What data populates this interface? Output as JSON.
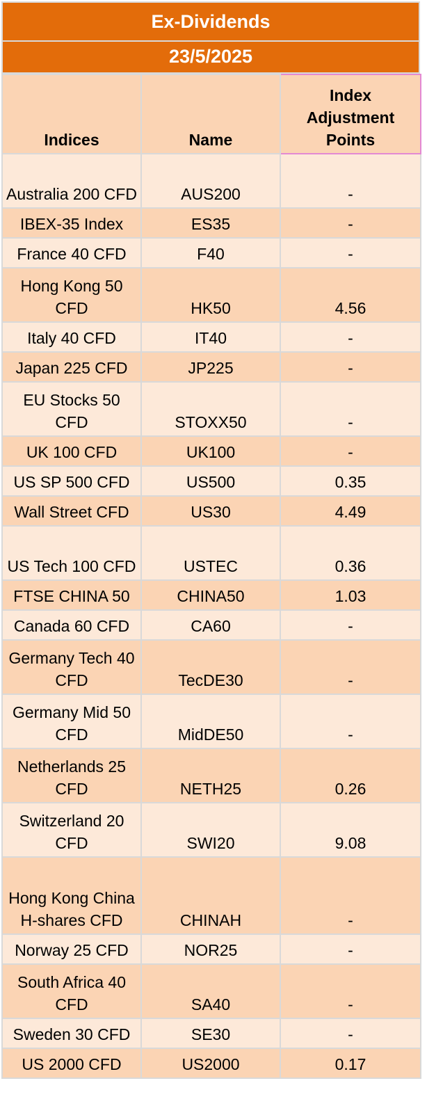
{
  "title": "Ex-Dividends",
  "date": "23/5/2025",
  "headers": {
    "indices": "Indices",
    "name": "Name",
    "points": "Index Adjustment Points"
  },
  "rows": [
    {
      "index": "Australia 200 CFD",
      "name": "AUS200",
      "points": "-"
    },
    {
      "index": "IBEX-35 Index",
      "name": "ES35",
      "points": "-"
    },
    {
      "index": "France 40 CFD",
      "name": "F40",
      "points": "-"
    },
    {
      "index": "Hong Kong 50 CFD",
      "name": "HK50",
      "points": "4.56"
    },
    {
      "index": "Italy 40 CFD",
      "name": "IT40",
      "points": "-"
    },
    {
      "index": "Japan 225 CFD",
      "name": "JP225",
      "points": "-"
    },
    {
      "index": "EU Stocks 50 CFD",
      "name": "STOXX50",
      "points": "-"
    },
    {
      "index": "UK 100 CFD",
      "name": "UK100",
      "points": "-"
    },
    {
      "index": "US SP 500 CFD",
      "name": "US500",
      "points": "0.35"
    },
    {
      "index": "Wall Street CFD",
      "name": "US30",
      "points": "4.49"
    },
    {
      "index": "US Tech 100 CFD",
      "name": "USTEC",
      "points": "0.36"
    },
    {
      "index": "FTSE CHINA 50",
      "name": "CHINA50",
      "points": "1.03"
    },
    {
      "index": "Canada 60 CFD",
      "name": "CA60",
      "points": "-"
    },
    {
      "index": "Germany Tech 40 CFD",
      "name": "TecDE30",
      "points": "-"
    },
    {
      "index": "Germany Mid 50 CFD",
      "name": "MidDE50",
      "points": "-"
    },
    {
      "index": "Netherlands 25 CFD",
      "name": "NETH25",
      "points": "0.26"
    },
    {
      "index": "Switzerland 20 CFD",
      "name": "SWI20",
      "points": "9.08"
    },
    {
      "index": "Hong Kong China H-shares CFD",
      "name": "CHINAH",
      "points": "-"
    },
    {
      "index": "Norway 25 CFD",
      "name": "NOR25",
      "points": "-"
    },
    {
      "index": "South Africa 40 CFD",
      "name": "SA40",
      "points": "-"
    },
    {
      "index": "Sweden 30 CFD",
      "name": "SE30",
      "points": "-"
    },
    {
      "index": "US 2000 CFD",
      "name": "US2000",
      "points": "0.17"
    }
  ]
}
